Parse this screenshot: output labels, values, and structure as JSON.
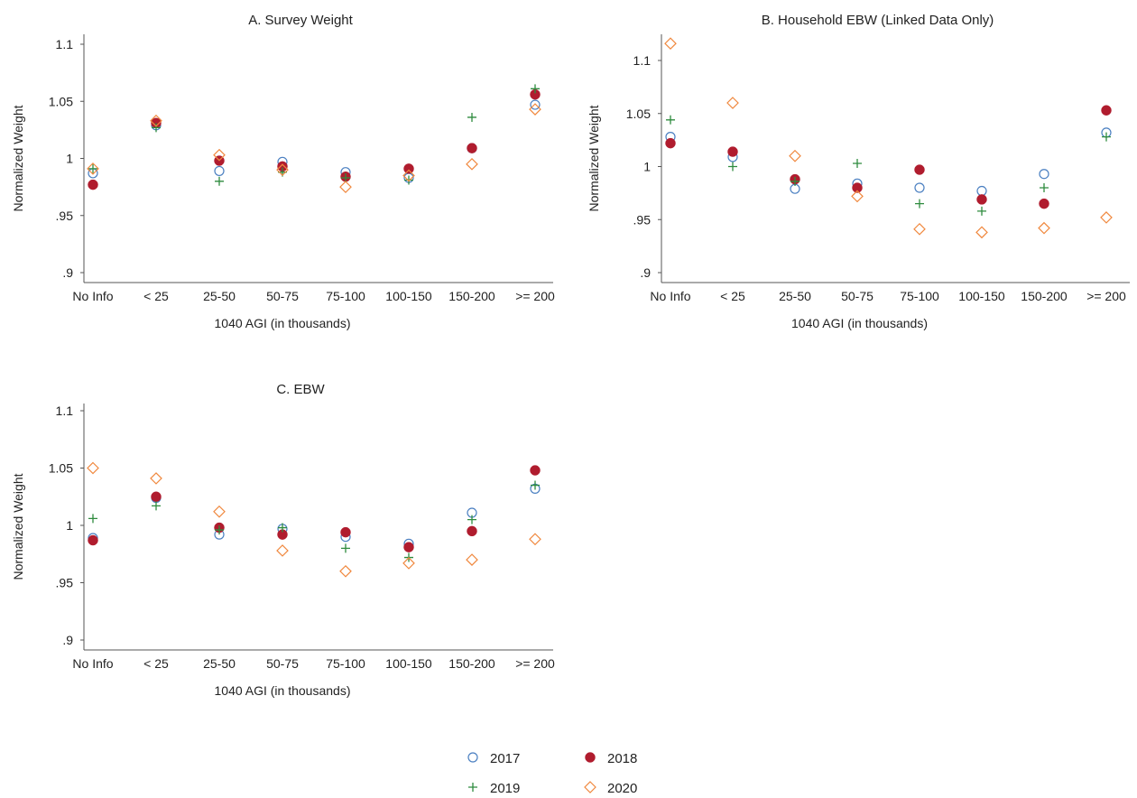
{
  "colors": {
    "2017": "#4a7fc1",
    "2018": "#b01c2e",
    "2019": "#2e8b3e",
    "2020": "#f0883e"
  },
  "legend": [
    {
      "label": "2017",
      "marker": "circle-open",
      "color": "#4a7fc1"
    },
    {
      "label": "2018",
      "marker": "circle-filled",
      "color": "#b01c2e"
    },
    {
      "label": "2019",
      "marker": "plus",
      "color": "#2e8b3e"
    },
    {
      "label": "2020",
      "marker": "diamond-open",
      "color": "#f0883e"
    }
  ],
  "chart_data": [
    {
      "type": "scatter",
      "title": "A. Survey Weight",
      "xlabel": "1040 AGI (in thousands)",
      "ylabel": "Normalized Weight",
      "categories": [
        "No Info",
        "< 25",
        "25-50",
        "50-75",
        "75-100",
        "100-150",
        "150-200",
        ">= 200"
      ],
      "ylim": [
        0.89,
        1.11
      ],
      "yticks": [
        0.9,
        0.95,
        1.0,
        1.05,
        1.1
      ],
      "ytick_labels": [
        ".9",
        ".95",
        "1",
        "1.05",
        "1.1"
      ],
      "grid": false,
      "series": [
        {
          "name": "2017",
          "marker": "circle-open",
          "values": [
            0.987,
            1.029,
            0.989,
            0.997,
            0.988,
            0.983,
            1.009,
            1.047
          ]
        },
        {
          "name": "2018",
          "marker": "circle-filled",
          "values": [
            0.977,
            1.031,
            0.998,
            0.993,
            0.984,
            0.991,
            1.009,
            1.056
          ]
        },
        {
          "name": "2019",
          "marker": "plus",
          "values": [
            0.991,
            1.027,
            0.98,
            0.988,
            0.983,
            0.981,
            1.036,
            1.061
          ]
        },
        {
          "name": "2020",
          "marker": "diamond-open",
          "values": [
            0.991,
            1.033,
            1.003,
            0.99,
            0.975,
            0.985,
            0.995,
            1.043
          ]
        }
      ]
    },
    {
      "type": "scatter",
      "title": "B. Household EBW (Linked Data Only)",
      "xlabel": "1040 AGI (in thousands)",
      "ylabel": "Normalized Weight",
      "categories": [
        "No Info",
        "< 25",
        "25-50",
        "50-75",
        "75-100",
        "100-150",
        "150-200",
        ">= 200"
      ],
      "ylim": [
        0.89,
        1.125
      ],
      "yticks": [
        0.9,
        0.95,
        1.0,
        1.05,
        1.1
      ],
      "ytick_labels": [
        ".9",
        ".95",
        "1",
        "1.05",
        "1.1"
      ],
      "grid": false,
      "series": [
        {
          "name": "2017",
          "marker": "circle-open",
          "values": [
            1.028,
            1.009,
            0.979,
            0.984,
            0.98,
            0.977,
            0.993,
            1.032
          ]
        },
        {
          "name": "2018",
          "marker": "circle-filled",
          "values": [
            1.022,
            1.014,
            0.988,
            0.98,
            0.997,
            0.969,
            0.965,
            1.053
          ]
        },
        {
          "name": "2019",
          "marker": "plus",
          "values": [
            1.044,
            1.0,
            0.986,
            1.003,
            0.965,
            0.958,
            0.98,
            1.028
          ]
        },
        {
          "name": "2020",
          "marker": "diamond-open",
          "values": [
            1.116,
            1.06,
            1.01,
            0.972,
            0.941,
            0.938,
            0.942,
            0.952
          ]
        }
      ]
    },
    {
      "type": "scatter",
      "title": "C. EBW",
      "xlabel": "1040 AGI (in thousands)",
      "ylabel": "Normalized Weight",
      "categories": [
        "No Info",
        "< 25",
        "25-50",
        "50-75",
        "75-100",
        "100-150",
        "150-200",
        ">= 200"
      ],
      "ylim": [
        0.89,
        1.11
      ],
      "yticks": [
        0.9,
        0.95,
        1.0,
        1.05,
        1.1
      ],
      "ytick_labels": [
        ".9",
        ".95",
        "1",
        "1.05",
        "1.1"
      ],
      "grid": false,
      "series": [
        {
          "name": "2017",
          "marker": "circle-open",
          "values": [
            0.989,
            1.024,
            0.992,
            0.997,
            0.99,
            0.984,
            1.011,
            1.032
          ]
        },
        {
          "name": "2018",
          "marker": "circle-filled",
          "values": [
            0.987,
            1.025,
            0.998,
            0.992,
            0.994,
            0.981,
            0.995,
            1.048
          ]
        },
        {
          "name": "2019",
          "marker": "plus",
          "values": [
            1.006,
            1.017,
            0.996,
            0.998,
            0.98,
            0.972,
            1.005,
            1.035
          ]
        },
        {
          "name": "2020",
          "marker": "diamond-open",
          "values": [
            1.05,
            1.041,
            1.012,
            0.978,
            0.96,
            0.967,
            0.97,
            0.988
          ]
        }
      ]
    }
  ]
}
